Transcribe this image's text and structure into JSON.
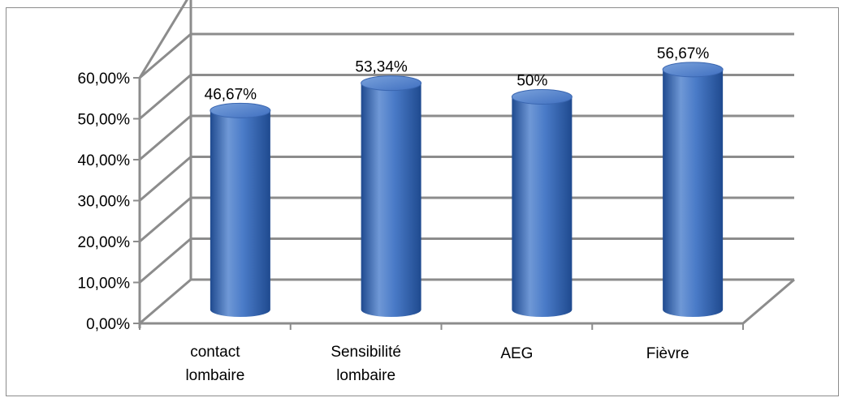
{
  "chart_data": {
    "type": "bar",
    "style": "3d-cylinder",
    "categories": [
      [
        "contact",
        "lombaire"
      ],
      [
        "Sensibilité",
        "lombaire"
      ],
      [
        "AEG"
      ],
      [
        "Fièvre"
      ]
    ],
    "values": [
      46.67,
      53.34,
      50,
      56.67
    ],
    "data_labels": [
      "46,67%",
      "53,34%",
      "50%",
      "56,67%"
    ],
    "y_ticks": [
      "0,00%",
      "10,00%",
      "20,00%",
      "30,00%",
      "40,00%",
      "50,00%",
      "60,00%"
    ],
    "ylim": [
      0,
      60
    ],
    "grid": true,
    "legend": "none",
    "title": "",
    "xlabel": "",
    "ylabel": "",
    "colors": {
      "bar_light": "#6f98d6",
      "bar_mid": "#3f6fc0",
      "bar_dark": "#1f4a8f",
      "bar_top": "#5a86cf",
      "gridline": "#8c8c8c"
    }
  }
}
